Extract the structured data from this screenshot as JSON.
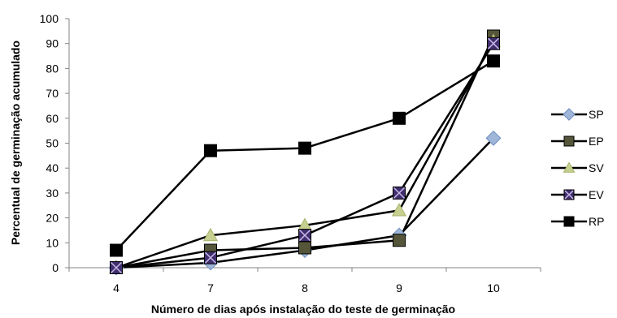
{
  "chart_data": {
    "type": "line",
    "xlabel": "Número de dias após instalação do teste de germinação",
    "ylabel": "Percentual de germinação acumulado",
    "categories": [
      "4",
      "7",
      "8",
      "9",
      "10"
    ],
    "ylim": [
      0,
      100
    ],
    "yticks": [
      "0",
      "10",
      "20",
      "30",
      "40",
      "50",
      "60",
      "70",
      "80",
      "90",
      "100"
    ],
    "grid": false,
    "legend_position": "right",
    "series": [
      {
        "name": "SP",
        "values": [
          0,
          2,
          7,
          13,
          52
        ],
        "marker": "diamond",
        "color": "#9fb6d9",
        "stroke": "#6f8fc0"
      },
      {
        "name": "EP",
        "values": [
          0,
          7,
          8,
          11,
          93
        ],
        "marker": "square",
        "color": "#55553a",
        "stroke": "#000000"
      },
      {
        "name": "SV",
        "values": [
          0,
          13,
          17,
          23,
          91
        ],
        "marker": "triangle",
        "color": "#c6cf8f",
        "stroke": "#a8b26a"
      },
      {
        "name": "EV",
        "values": [
          0,
          4,
          13,
          30,
          90
        ],
        "marker": "xsquare",
        "color": "#3f2f6e",
        "stroke": "#000000"
      },
      {
        "name": "RP",
        "values": [
          7,
          47,
          48,
          60,
          83
        ],
        "marker": "square",
        "color": "#000000",
        "stroke": "#000000"
      }
    ]
  }
}
